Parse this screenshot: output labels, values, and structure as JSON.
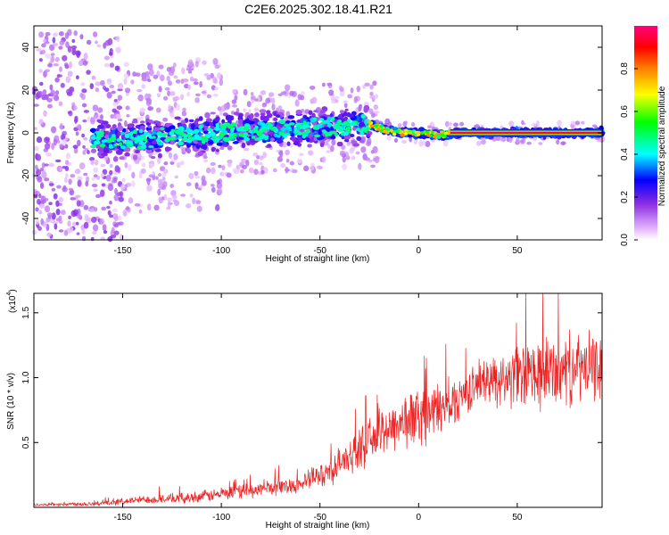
{
  "title": "C2E6.2025.302.18.41.R21",
  "chart_data": [
    {
      "type": "heatmap",
      "name": "spectrogram",
      "xlabel": "Height of straight line (km)",
      "ylabel": "Frequency (Hz)",
      "xlim": [
        -195,
        93
      ],
      "ylim": [
        -50,
        50
      ],
      "xticks": [
        -150,
        -100,
        -50,
        0,
        50
      ],
      "yticks": [
        -40,
        -20,
        0,
        20,
        40
      ],
      "colorbar": {
        "label": "Normalized spectral amplitude",
        "range": [
          0,
          1
        ],
        "ticks": [
          0.0,
          0.2,
          0.4,
          0.6,
          0.8
        ],
        "tick_labels": [
          "0.0",
          "0.2",
          "0.4",
          "0.6",
          "0.8"
        ],
        "colors": [
          "#ffffff",
          "#e6b8ff",
          "#8a2be2",
          "#0000ff",
          "#00ffff",
          "#00ff00",
          "#ffff00",
          "#ff8000",
          "#ff0000",
          "#ff0080"
        ]
      },
      "ridge": [
        [
          -160,
          -3
        ],
        [
          -140,
          -3
        ],
        [
          -120,
          -1
        ],
        [
          -100,
          0
        ],
        [
          -80,
          1
        ],
        [
          -60,
          2
        ],
        [
          -40,
          3
        ],
        [
          -25,
          4
        ],
        [
          -15,
          1
        ],
        [
          -8,
          0
        ],
        [
          0,
          0
        ],
        [
          10,
          -1
        ],
        [
          20,
          0
        ],
        [
          93,
          0
        ]
      ],
      "strong_tone": {
        "x_start": 16,
        "x_end": 93,
        "frequency": 0,
        "amplitude": 0.95
      }
    },
    {
      "type": "line",
      "name": "snr",
      "xlabel": "Height of straight line (km)",
      "ylabel": "SNR (10 * v/v)",
      "y_scale_label": "(x10",
      "y_scale_exponent": "4",
      "xlim": [
        -195,
        93
      ],
      "ylim": [
        0,
        1.65
      ],
      "xticks": [
        -150,
        -100,
        -50,
        0,
        50
      ],
      "yticks": [
        0.5,
        1.0,
        1.5
      ],
      "ytick_labels": [
        "0.5",
        "1.0",
        "1.5"
      ],
      "color": "#ee2222",
      "trend": [
        [
          -195,
          0.02
        ],
        [
          -160,
          0.03
        ],
        [
          -140,
          0.06
        ],
        [
          -120,
          0.07
        ],
        [
          -100,
          0.1
        ],
        [
          -80,
          0.14
        ],
        [
          -60,
          0.18
        ],
        [
          -45,
          0.28
        ],
        [
          -30,
          0.45
        ],
        [
          -15,
          0.62
        ],
        [
          0,
          0.7
        ],
        [
          15,
          0.78
        ],
        [
          25,
          0.9
        ],
        [
          35,
          0.98
        ],
        [
          50,
          1.0
        ],
        [
          70,
          1.05
        ],
        [
          93,
          1.08
        ]
      ],
      "noise": [
        [
          -195,
          0.01
        ],
        [
          -150,
          0.03
        ],
        [
          -100,
          0.06
        ],
        [
          -60,
          0.08
        ],
        [
          -30,
          0.18
        ],
        [
          0,
          0.28
        ],
        [
          30,
          0.18
        ],
        [
          60,
          0.35
        ],
        [
          93,
          0.3
        ]
      ]
    }
  ]
}
